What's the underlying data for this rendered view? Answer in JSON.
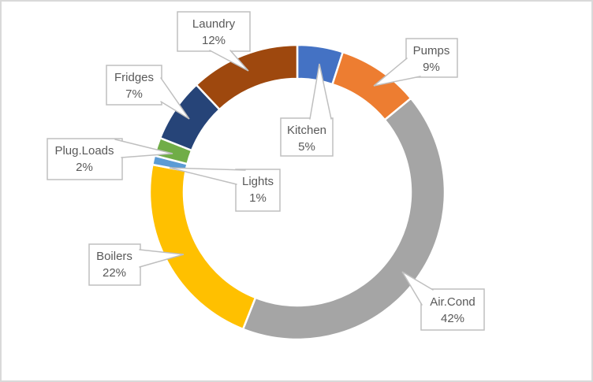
{
  "window": {
    "background": "#FFFFFF",
    "frame_border_color": "#D9D9D9"
  },
  "chart_data": {
    "type": "pie",
    "subtype": "doughnut",
    "title": "",
    "legend": "none",
    "hole_ratio": 0.77,
    "rotation_deg": 0,
    "direction": "clockwise",
    "unit": "%",
    "categories": [
      "Kitchen",
      "Pumps",
      "Air.Cond",
      "Boilers",
      "Lights",
      "Plug.Loads",
      "Fridges",
      "Laundry"
    ],
    "values": [
      5,
      9,
      42,
      22,
      1,
      2,
      7,
      12
    ],
    "colors": [
      "#4472C4",
      "#ED7D31",
      "#A5A5A5",
      "#FFC000",
      "#5B9BD5",
      "#70AD47",
      "#264478",
      "#9E480E"
    ],
    "slice_border_color": "#FFFFFF",
    "labels": [
      {
        "name": "Kitchen",
        "pct": "5%"
      },
      {
        "name": "Pumps",
        "pct": "9%"
      },
      {
        "name": "Air.Cond",
        "pct": "42%"
      },
      {
        "name": "Boilers",
        "pct": "22%"
      },
      {
        "name": "Lights",
        "pct": "1%"
      },
      {
        "name": "Plug.Loads",
        "pct": "2%"
      },
      {
        "name": "Fridges",
        "pct": "7%"
      },
      {
        "name": "Laundry",
        "pct": "12%"
      }
    ],
    "label_style": {
      "shape": "rectangular-callout",
      "fill": "#FFFFFF",
      "border_color": "#BFBFBF",
      "text_color": "#595959"
    }
  }
}
